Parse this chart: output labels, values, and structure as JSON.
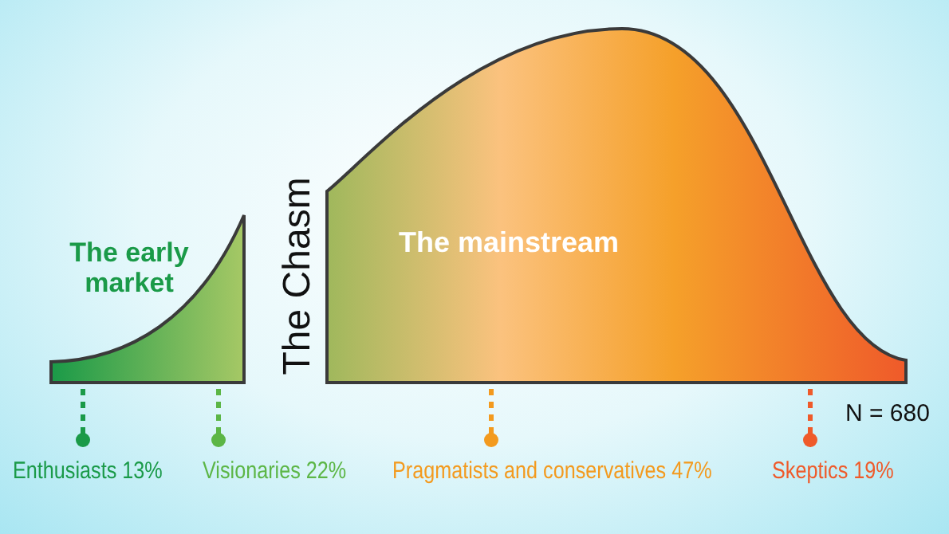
{
  "chart_data": {
    "type": "other",
    "categories": [
      "Enthusiasts",
      "Visionaries",
      "Pragmatists and conservatives",
      "Skeptics"
    ],
    "values": [
      13,
      22,
      47,
      19
    ],
    "value_labels": [
      "13%",
      "22%",
      "47%",
      "19%"
    ],
    "colors": [
      "#1a9a48",
      "#5cb646",
      "#f39a1e",
      "#ef5a2a"
    ],
    "annotations": [
      "The early market",
      "The Chasm",
      "The mainstream",
      "N = 680"
    ]
  }
}
